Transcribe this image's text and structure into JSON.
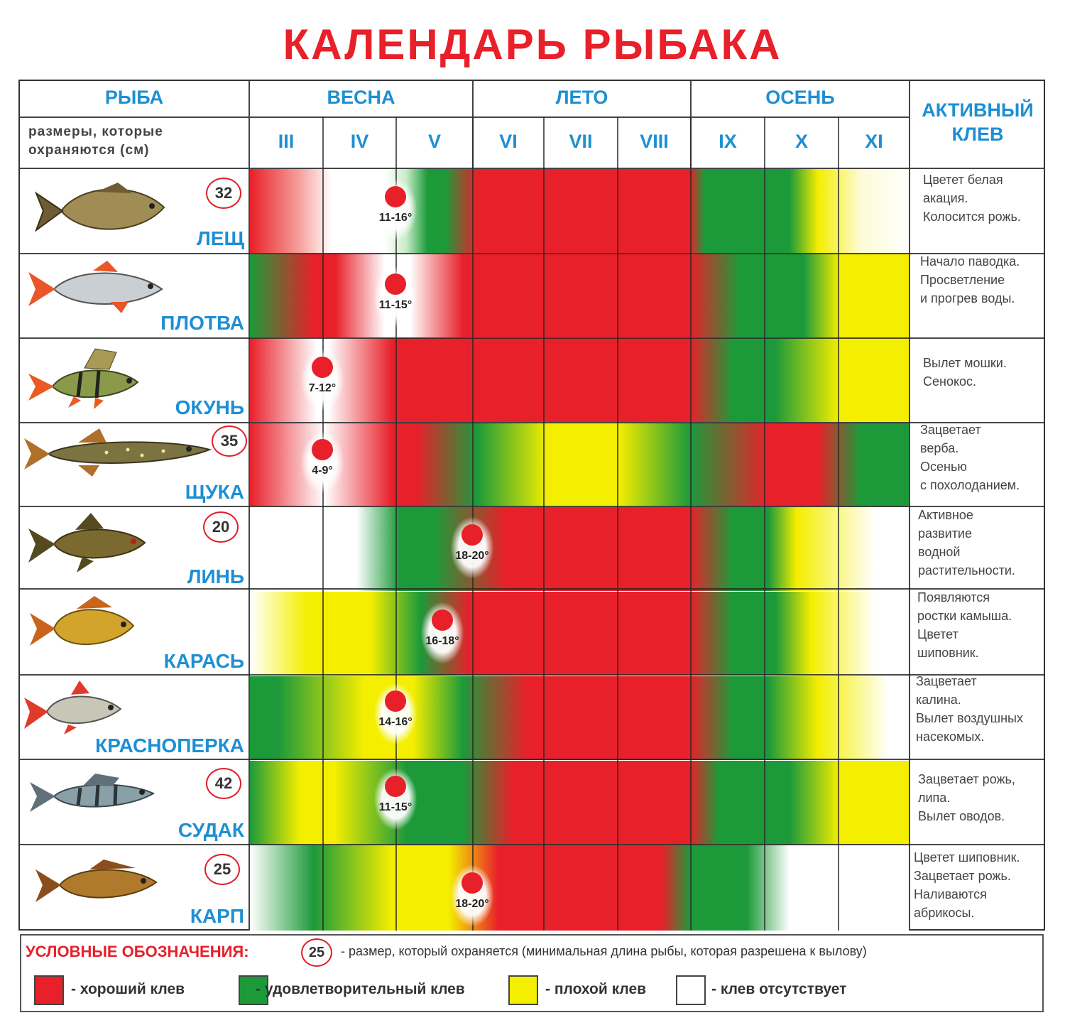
{
  "title": "КАЛЕНДАРЬ РЫБАКА",
  "header": {
    "fish": "РЫБА",
    "sizes_note": "размеры, которые\nохраняются (см)",
    "seasons": [
      "ВЕСНА",
      "ЛЕТО",
      "ОСЕНЬ"
    ],
    "active_bite": "АКТИВНЫЙ\nКЛЕВ",
    "months": [
      "III",
      "IV",
      "V",
      "VI",
      "VII",
      "VIII",
      "IX",
      "X",
      "XI"
    ]
  },
  "colors": {
    "good": "#e8202a",
    "satisfactory": "#1c9a3a",
    "poor": "#f4ee00",
    "none": "#ffffff",
    "accent_blue": "#1e8fd4"
  },
  "rows": [
    {
      "name": "ЛЕЩ",
      "size": "32",
      "temp": "11-16°",
      "marker_month": "V",
      "note": "Цветет белая\nакация.\nКолосится рожь.",
      "icon": "bream-icon"
    },
    {
      "name": "ПЛОТВА",
      "size": "",
      "temp": "11-15°",
      "marker_month": "V",
      "note": "Начало паводка.\nПросветление\nи прогрев воды.",
      "icon": "roach-icon"
    },
    {
      "name": "ОКУНЬ",
      "size": "",
      "temp": "7-12°",
      "marker_month": "IV",
      "note": "Вылет мошки.\nСенокос.",
      "icon": "perch-icon"
    },
    {
      "name": "ЩУКА",
      "size": "35",
      "temp": "4-9°",
      "marker_month": "IV",
      "note": "Зацветает\nверба.\nОсенью\nс похолоданием.",
      "icon": "pike-icon"
    },
    {
      "name": "ЛИНЬ",
      "size": "20",
      "temp": "18-20°",
      "marker_month": "VI",
      "note": "Активное\nразвитие\nводной\nрастительности.",
      "icon": "tench-icon"
    },
    {
      "name": "КАРАСЬ",
      "size": "",
      "temp": "16-18°",
      "marker_month": "V",
      "note": "Появляются\nростки камыша.\nЦветет\nшиповник.",
      "icon": "crucian-icon"
    },
    {
      "name": "КРАСНОПЕРКА",
      "size": "",
      "temp": "14-16°",
      "marker_month": "V",
      "note": "Зацветает\nкалина.\nВылет воздушных\nнасекомых.",
      "icon": "rudd-icon"
    },
    {
      "name": "СУДАК",
      "size": "42",
      "temp": "11-15°",
      "marker_month": "V",
      "note": "Зацветает рожь,\nлипа.\nВылет оводов.",
      "icon": "zander-icon"
    },
    {
      "name": "КАРП",
      "size": "25",
      "temp": "18-20°",
      "marker_month": "VI",
      "note": "Цветет шиповник.\nЗацветает рожь.\nНаливаются\nабрикосы.",
      "icon": "carp-icon"
    }
  ],
  "legend": {
    "title": "УСЛОВНЫЕ ОБОЗНАЧЕНИЯ:",
    "badge": "25",
    "badge_text": "- размер, который охраняется (минимальная длина рыбы, которая разрешена к вылову)",
    "items": [
      {
        "label": "- хороший клев",
        "color": "#e8202a"
      },
      {
        "label": "- удовлетворительный клев",
        "color": "#1c9a3a"
      },
      {
        "label": "- плохой клев",
        "color": "#f4ee00"
      },
      {
        "label": "-  клев отсутствует",
        "color": "#ffffff"
      }
    ]
  }
}
